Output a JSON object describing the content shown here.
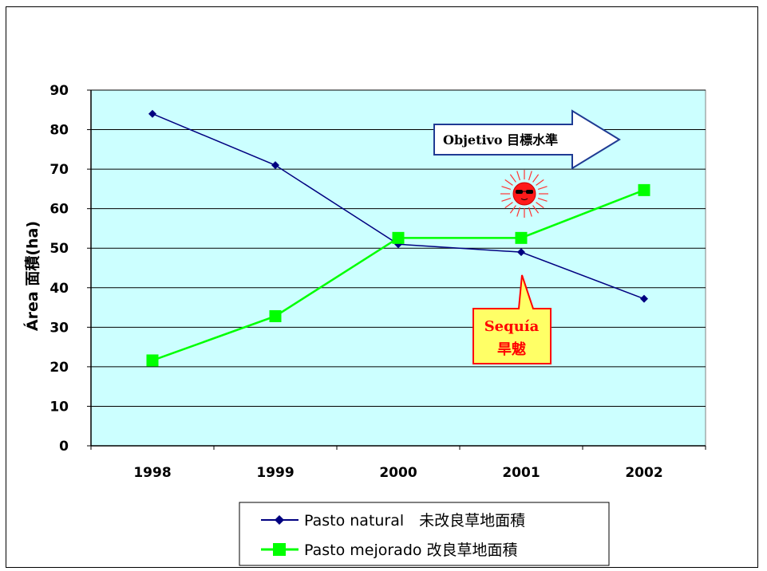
{
  "chart_data": {
    "type": "line",
    "title": "",
    "xlabel": "",
    "ylabel": "Área 面積(ha)",
    "categories": [
      "1998",
      "1999",
      "2000",
      "2001",
      "2002"
    ],
    "ylim": [
      0,
      90
    ],
    "yticks": [
      0,
      10,
      20,
      30,
      40,
      50,
      60,
      70,
      80,
      90
    ],
    "grid": true,
    "plot_background": "#ccffff",
    "legend_position": "bottom",
    "series": [
      {
        "name": "Pasto natural　未改良草地面積",
        "values": [
          84,
          71,
          51,
          49,
          37.2
        ],
        "color": "#000080",
        "marker": "diamond"
      },
      {
        "name": "Pasto mejorado 改良草地面積",
        "values": [
          21.6,
          32.8,
          52.6,
          52.6,
          64.7
        ],
        "color": "#00ff00",
        "marker": "square"
      }
    ],
    "annotations": {
      "objective": "Objetivo 目標水準",
      "drought_line1": "Sequía",
      "drought_line2": "旱魃"
    }
  }
}
